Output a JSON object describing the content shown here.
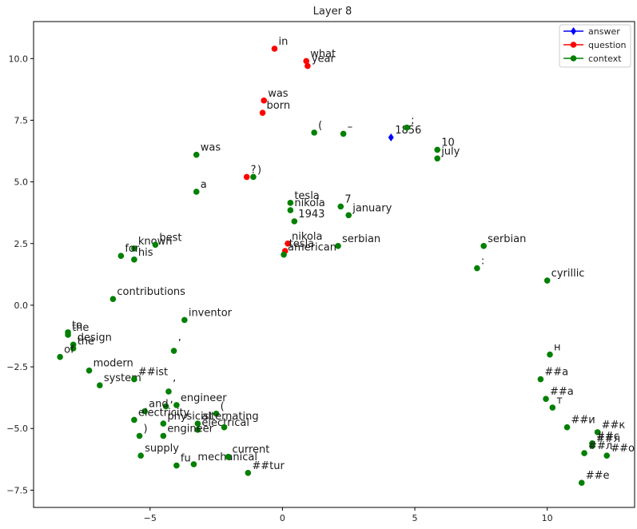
{
  "colors": {
    "answer": "#0000ff",
    "question": "#ff0000",
    "context": "#008000"
  },
  "chart_data": {
    "type": "scatter",
    "title": "Layer 8",
    "xlabel": "",
    "ylabel": "",
    "xlim": [
      -9.4,
      13.3
    ],
    "ylim": [
      -8.2,
      11.5
    ],
    "grid": false,
    "legend_position": "top-right",
    "xticks": [
      -5,
      0,
      5,
      10
    ],
    "xtick_labels": [
      "−5",
      "0",
      "5",
      "10"
    ],
    "yticks": [
      -7.5,
      -5.0,
      -2.5,
      0.0,
      2.5,
      5.0,
      7.5,
      10.0
    ],
    "ytick_labels": [
      "−7.5",
      "−5.0",
      "−2.5",
      "0.0",
      "2.5",
      "5.0",
      "7.5",
      "10.0"
    ],
    "legend": [
      {
        "name": "answer",
        "marker": "diamond"
      },
      {
        "name": "question",
        "marker": "circle"
      },
      {
        "name": "context",
        "marker": "circle"
      }
    ],
    "series": [
      {
        "name": "answer",
        "marker": "diamond",
        "points": [
          {
            "x": 4.1,
            "y": 6.8,
            "label": "1856"
          }
        ]
      },
      {
        "name": "question",
        "marker": "circle",
        "points": [
          {
            "x": -0.3,
            "y": 10.4,
            "label": "in"
          },
          {
            "x": 0.9,
            "y": 9.9,
            "label": "what"
          },
          {
            "x": 0.95,
            "y": 9.7,
            "label": "year"
          },
          {
            "x": -0.7,
            "y": 8.3,
            "label": "was"
          },
          {
            "x": -0.75,
            "y": 7.8,
            "label": "born"
          },
          {
            "x": -1.35,
            "y": 5.2,
            "label": "?"
          },
          {
            "x": 0.2,
            "y": 2.5,
            "label": "nikola"
          },
          {
            "x": 0.1,
            "y": 2.2,
            "label": "tesla"
          }
        ]
      },
      {
        "name": "context",
        "marker": "circle",
        "points": [
          {
            "x": 1.2,
            "y": 7.0,
            "label": "("
          },
          {
            "x": 2.3,
            "y": 6.95,
            "label": "–"
          },
          {
            "x": 4.7,
            "y": 7.2,
            "label": ";"
          },
          {
            "x": 5.85,
            "y": 6.3,
            "label": "10"
          },
          {
            "x": 5.85,
            "y": 5.95,
            "label": "july"
          },
          {
            "x": -3.25,
            "y": 6.1,
            "label": "was"
          },
          {
            "x": -1.1,
            "y": 5.2,
            "label": ")"
          },
          {
            "x": -3.25,
            "y": 4.6,
            "label": "a"
          },
          {
            "x": 0.3,
            "y": 4.15,
            "label": "tesla"
          },
          {
            "x": 0.3,
            "y": 3.85,
            "label": "nikola"
          },
          {
            "x": 2.2,
            "y": 4.0,
            "label": "7"
          },
          {
            "x": 2.5,
            "y": 3.65,
            "label": "january"
          },
          {
            "x": 0.45,
            "y": 3.4,
            "label": "1943"
          },
          {
            "x": 2.1,
            "y": 2.4,
            "label": "serbian"
          },
          {
            "x": 0.05,
            "y": 2.05,
            "label": "american"
          },
          {
            "x": 7.6,
            "y": 2.4,
            "label": "serbian"
          },
          {
            "x": 7.35,
            "y": 1.5,
            "label": ":"
          },
          {
            "x": 10.0,
            "y": 1.0,
            "label": "cyrillic"
          },
          {
            "x": -5.6,
            "y": 2.3,
            "label": "known"
          },
          {
            "x": -4.8,
            "y": 2.45,
            "label": "best"
          },
          {
            "x": -6.1,
            "y": 2.0,
            "label": "for"
          },
          {
            "x": -5.6,
            "y": 1.85,
            "label": "his"
          },
          {
            "x": -6.4,
            "y": 0.25,
            "label": "contributions"
          },
          {
            "x": -3.7,
            "y": -0.6,
            "label": "inventor"
          },
          {
            "x": -4.1,
            "y": -1.85,
            "label": "’"
          },
          {
            "x": -8.1,
            "y": -1.1,
            "label": "to"
          },
          {
            "x": -8.1,
            "y": -1.2,
            "label": "the"
          },
          {
            "x": -7.9,
            "y": -1.6,
            "label": "design"
          },
          {
            "x": -7.9,
            "y": -1.75,
            "label": "the"
          },
          {
            "x": -8.4,
            "y": -2.1,
            "label": "of"
          },
          {
            "x": -7.3,
            "y": -2.65,
            "label": "modern"
          },
          {
            "x": -6.9,
            "y": -3.25,
            "label": "system"
          },
          {
            "x": -5.6,
            "y": -3.0,
            "label": "##ist"
          },
          {
            "x": -4.3,
            "y": -3.5,
            "label": "’"
          },
          {
            "x": -4.0,
            "y": -4.05,
            "label": "engineer"
          },
          {
            "x": -4.4,
            "y": -4.1,
            "label": ","
          },
          {
            "x": -5.2,
            "y": -4.3,
            "label": "and"
          },
          {
            "x": -5.6,
            "y": -4.65,
            "label": "electricity"
          },
          {
            "x": -4.5,
            "y": -4.8,
            "label": "physicist"
          },
          {
            "x": -2.5,
            "y": -4.4,
            "label": "("
          },
          {
            "x": -3.2,
            "y": -4.8,
            "label": "alternating"
          },
          {
            "x": -3.2,
            "y": -5.05,
            "label": "electrical"
          },
          {
            "x": -2.2,
            "y": -4.95,
            "label": "-"
          },
          {
            "x": -5.4,
            "y": -5.3,
            "label": ")"
          },
          {
            "x": -4.5,
            "y": -5.3,
            "label": "engineer"
          },
          {
            "x": -5.35,
            "y": -6.1,
            "label": "supply"
          },
          {
            "x": -4.0,
            "y": -6.5,
            "label": "fu"
          },
          {
            "x": -3.35,
            "y": -6.45,
            "label": "mechanical"
          },
          {
            "x": -2.05,
            "y": -6.15,
            "label": "current"
          },
          {
            "x": -1.3,
            "y": -6.8,
            "label": "##tur"
          },
          {
            "x": 10.1,
            "y": -2.0,
            "label": "н"
          },
          {
            "x": 9.75,
            "y": -3.0,
            "label": "##а"
          },
          {
            "x": 9.95,
            "y": -3.8,
            "label": "##а"
          },
          {
            "x": 10.2,
            "y": -4.15,
            "label": "т"
          },
          {
            "x": 10.75,
            "y": -4.95,
            "label": "##и"
          },
          {
            "x": 11.9,
            "y": -5.15,
            "label": "##к"
          },
          {
            "x": 11.7,
            "y": -5.6,
            "label": "##с"
          },
          {
            "x": 11.7,
            "y": -5.7,
            "label": "##л"
          },
          {
            "x": 11.4,
            "y": -6.0,
            "label": "##л"
          },
          {
            "x": 12.25,
            "y": -6.1,
            "label": "##о"
          },
          {
            "x": 11.3,
            "y": -7.2,
            "label": "##е"
          }
        ]
      }
    ]
  }
}
